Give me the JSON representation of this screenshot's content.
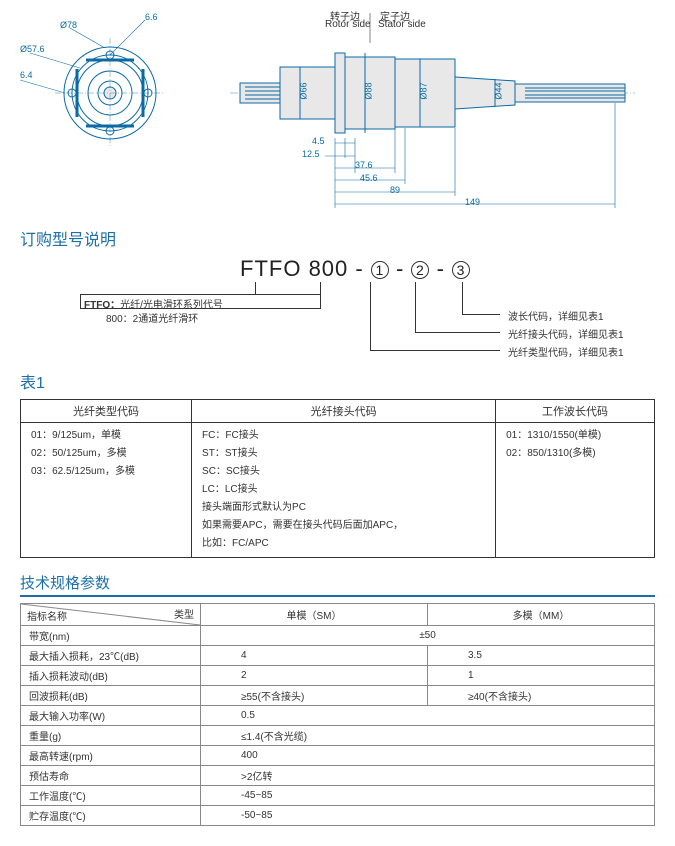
{
  "diagram": {
    "rotor_label": "转子边",
    "rotor_label_en": "Rotor side",
    "stator_label": "定子边",
    "stator_label_en": "Stator side",
    "front_dims": {
      "d1": "6.6",
      "d2": "Ø78",
      "d3": "Ø57.6",
      "d4": "6.4"
    },
    "side_dims": {
      "h1": "Ø66",
      "h2": "Ø88",
      "h3": "Ø87",
      "h4": "Ø44",
      "l1": "4.5",
      "l2": "12.5",
      "l3": "37.6",
      "l4": "45.6",
      "l5": "89",
      "l6": "149"
    },
    "colors": {
      "line": "#0a6aa6",
      "fill": "#e8e8e8"
    }
  },
  "order_section": {
    "title": "订购型号说明",
    "code_prefix": "FTFO",
    "code_fixed": "800",
    "sep": "-",
    "p1": "1",
    "p2": "2",
    "p3": "3",
    "left_note1_label": "FTFO：",
    "left_note1": "光纤/光电滑环系列代号",
    "left_note2": "800：2通道光纤滑环",
    "right_note1": "波长代码，详细见表1",
    "right_note2": "光纤接头代码，详细见表1",
    "right_note3": "光纤类型代码，详细见表1"
  },
  "table1": {
    "title": "表1",
    "headers": {
      "c1": "光纤类型代码",
      "c2": "光纤接头代码",
      "c3": "工作波长代码"
    },
    "col1": [
      "01：9/125um，单模",
      "02：50/125um，多模",
      "03：62.5/125um，多模"
    ],
    "col2": [
      "FC：FC接头",
      "ST：ST接头",
      "SC：SC接头",
      "LC：LC接头",
      "接头端面形式默认为PC",
      "如果需要APC，需要在接头代码后面加APC，",
      "比如：FC/APC"
    ],
    "col3": [
      "01：1310/1550(单模)",
      "02：850/1310(多模)"
    ]
  },
  "specs": {
    "title": "技术规格参数",
    "header_left_a": "指标名称",
    "header_left_b": "类型",
    "header_sm": "单模（SM）",
    "header_mm": "多模（MM）",
    "rows": [
      {
        "label": "带宽(nm)",
        "span": true,
        "val": "±50"
      },
      {
        "label": "最大插入损耗，23℃(dB)",
        "sm": "4",
        "mm": "3.5"
      },
      {
        "label": "插入损耗波动(dB)",
        "sm": "2",
        "mm": "1"
      },
      {
        "label": "回波损耗(dB)",
        "sm": "≥55(不含接头)",
        "mm": "≥40(不含接头)"
      },
      {
        "label": "最大输入功率(W)",
        "span": true,
        "val": "0.5",
        "align": "left"
      },
      {
        "label": "重量(g)",
        "span": true,
        "val": "≤1.4(不含光缆)",
        "align": "left"
      },
      {
        "label": "最高转速(rpm)",
        "span": true,
        "val": "400",
        "align": "left"
      },
      {
        "label": "预估寿命",
        "span": true,
        "val": ">2亿转",
        "align": "left"
      },
      {
        "label": "工作温度(℃)",
        "span": true,
        "val": "-45~85",
        "align": "left"
      },
      {
        "label": "贮存温度(℃)",
        "span": true,
        "val": "-50~85",
        "align": "left"
      }
    ]
  }
}
